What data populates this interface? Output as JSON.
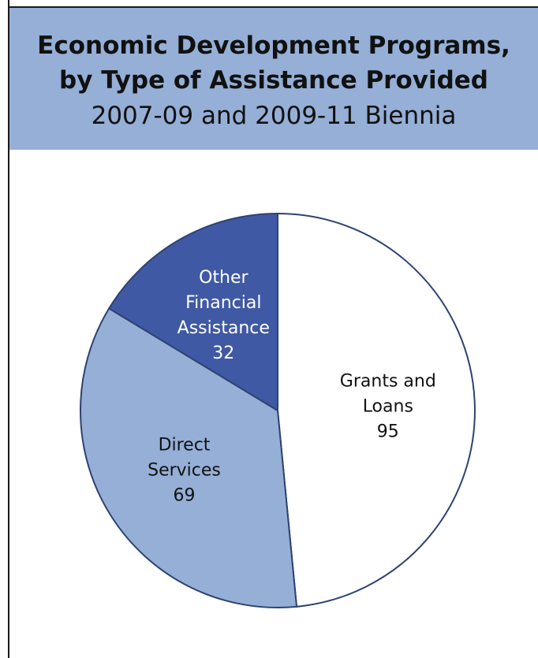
{
  "chart_data": {
    "type": "pie",
    "title": "Economic Development Programs,",
    "title_line2": "by Type of Assistance Provided",
    "subtitle": "2007-09 and 2009-11 Biennia",
    "slices": [
      {
        "label_lines": [
          "Grants and",
          "Loans"
        ],
        "value": 95,
        "color": "#ffffff",
        "text_color": "#111111"
      },
      {
        "label_lines": [
          "Direct",
          "Services"
        ],
        "value": 69,
        "color": "#95afd6",
        "text_color": "#111111"
      },
      {
        "label_lines": [
          "Other",
          "Financial",
          "Assistance"
        ],
        "value": 32,
        "color": "#3f59a4",
        "text_color": "#ffffff"
      }
    ],
    "start_angle_deg": 0,
    "direction": "clockwise",
    "outline_color": "#2f4272",
    "legend": "none",
    "grid": false
  },
  "colors": {
    "header_bg": "#95afd6",
    "text": "#111111"
  }
}
